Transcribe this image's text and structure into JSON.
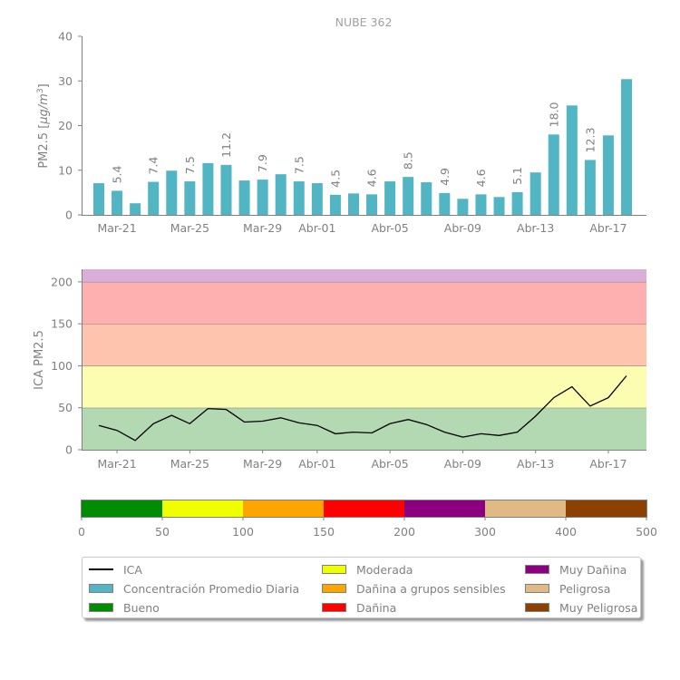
{
  "chart_data": [
    {
      "type": "bar",
      "title": "NUBE 362",
      "ylabel": "PM2.5 [μg/m³]",
      "ylabel_parts": {
        "text": "PM2.5 [",
        "unit": "μg/m",
        "exp": "3",
        "close": "]"
      },
      "ylim": [
        0,
        40
      ],
      "yticks": [
        "0",
        "10",
        "20",
        "30",
        "40"
      ],
      "ytick_values": [
        0,
        10,
        20,
        30,
        40
      ],
      "categories": [
        "Mar-20",
        "Mar-21",
        "Mar-22",
        "Mar-23",
        "Mar-24",
        "Mar-25",
        "Mar-26",
        "Mar-27",
        "Mar-28",
        "Mar-29",
        "Mar-30",
        "Mar-31",
        "Abr-01",
        "Abr-02",
        "Abr-03",
        "Abr-04",
        "Abr-05",
        "Abr-06",
        "Abr-07",
        "Abr-08",
        "Abr-09",
        "Abr-10",
        "Abr-11",
        "Abr-12",
        "Abr-13",
        "Abr-14",
        "Abr-15",
        "Abr-16",
        "Abr-17",
        "Abr-18"
      ],
      "xtick_labels": [
        "Mar-21",
        "Mar-25",
        "Mar-29",
        "Abr-01",
        "Abr-05",
        "Abr-09",
        "Abr-13",
        "Abr-17"
      ],
      "xtick_indices": [
        1,
        5,
        9,
        12,
        16,
        20,
        24,
        28
      ],
      "values": [
        7.1,
        5.4,
        2.6,
        7.4,
        9.9,
        7.5,
        11.6,
        11.2,
        7.7,
        7.9,
        9.1,
        7.5,
        7.1,
        4.5,
        4.8,
        4.6,
        7.5,
        8.5,
        7.3,
        4.9,
        3.6,
        4.6,
        4.0,
        5.1,
        9.5,
        18.0,
        24.5,
        12.3,
        17.8,
        30.4
      ],
      "data_labels": [
        {
          "index": 1,
          "text": "5.4"
        },
        {
          "index": 3,
          "text": "7.4"
        },
        {
          "index": 5,
          "text": "7.5"
        },
        {
          "index": 7,
          "text": "11.2"
        },
        {
          "index": 9,
          "text": "7.9"
        },
        {
          "index": 11,
          "text": "7.5"
        },
        {
          "index": 13,
          "text": "4.5"
        },
        {
          "index": 15,
          "text": "4.6"
        },
        {
          "index": 17,
          "text": "8.5"
        },
        {
          "index": 19,
          "text": "4.9"
        },
        {
          "index": 21,
          "text": "4.6"
        },
        {
          "index": 23,
          "text": "5.1"
        },
        {
          "index": 25,
          "text": "18.0"
        },
        {
          "index": 27,
          "text": "12.3"
        }
      ],
      "color": "#52b5c4",
      "grid": false
    },
    {
      "type": "line",
      "ylabel": "ICA PM2.5",
      "ylim": [
        0,
        215
      ],
      "yticks": [
        "0",
        "50",
        "100",
        "150",
        "200"
      ],
      "ytick_values": [
        0,
        50,
        100,
        150,
        200
      ],
      "xtick_labels": [
        "Mar-21",
        "Mar-25",
        "Mar-29",
        "Abr-01",
        "Abr-05",
        "Abr-09",
        "Abr-13",
        "Abr-17"
      ],
      "xtick_indices": [
        1,
        5,
        9,
        12,
        16,
        20,
        24,
        28
      ],
      "series": [
        {
          "name": "ICA",
          "color": "#000000",
          "values": [
            29,
            23,
            11,
            31,
            41,
            31,
            49,
            48,
            33,
            34,
            38,
            32,
            29,
            19,
            21,
            20,
            31,
            36,
            30,
            21,
            15,
            19,
            17,
            21,
            40,
            62,
            75,
            52,
            62,
            88
          ]
        }
      ],
      "bands": [
        {
          "from": 0,
          "to": 50,
          "color": "#b2d9b2"
        },
        {
          "from": 50,
          "to": 100,
          "color": "#fdfdb2"
        },
        {
          "from": 100,
          "to": 150,
          "color": "#fec4ae"
        },
        {
          "from": 150,
          "to": 200,
          "color": "#feb0b0"
        },
        {
          "from": 200,
          "to": 300,
          "color": "#d9aed9"
        }
      ],
      "grid": false
    },
    {
      "type": "colorbar",
      "range": [
        0,
        500
      ],
      "tick_labels": [
        "0",
        "50",
        "100",
        "150",
        "200",
        "300",
        "400",
        "500"
      ],
      "segments": [
        {
          "label": "Bueno",
          "color": "#008c00"
        },
        {
          "label": "Moderada",
          "color": "#f0ff00"
        },
        {
          "label": "Dañina a grupos sensibles",
          "color": "#ffa500"
        },
        {
          "label": "Dañina",
          "color": "#ff0000"
        },
        {
          "label": "Muy Dañina",
          "color": "#8c007f"
        },
        {
          "label": "Peligrosa",
          "color": "#e0b984"
        },
        {
          "label": "Muy Peligrosa",
          "color": "#8c4100"
        }
      ]
    }
  ],
  "legend": {
    "placement": "bottom",
    "items": [
      {
        "label": "ICA",
        "kind": "line",
        "color": "#000000"
      },
      {
        "label": "Concentración Promedio Diaria",
        "kind": "patch",
        "color": "#52b5c4"
      },
      {
        "label": "Bueno",
        "kind": "patch",
        "color": "#008c00"
      },
      {
        "label": "Moderada",
        "kind": "patch",
        "color": "#f0ff00"
      },
      {
        "label": "Dañina a grupos sensibles",
        "kind": "patch",
        "color": "#ffa500"
      },
      {
        "label": "Dañina",
        "kind": "patch",
        "color": "#ff0000"
      },
      {
        "label": "Muy Dañina",
        "kind": "patch",
        "color": "#8c007f"
      },
      {
        "label": "Peligrosa",
        "kind": "patch",
        "color": "#e0b984"
      },
      {
        "label": "Muy Peligrosa",
        "kind": "patch",
        "color": "#8c4100"
      }
    ]
  },
  "colors": {
    "text": "#808080",
    "axis": "#808080"
  }
}
